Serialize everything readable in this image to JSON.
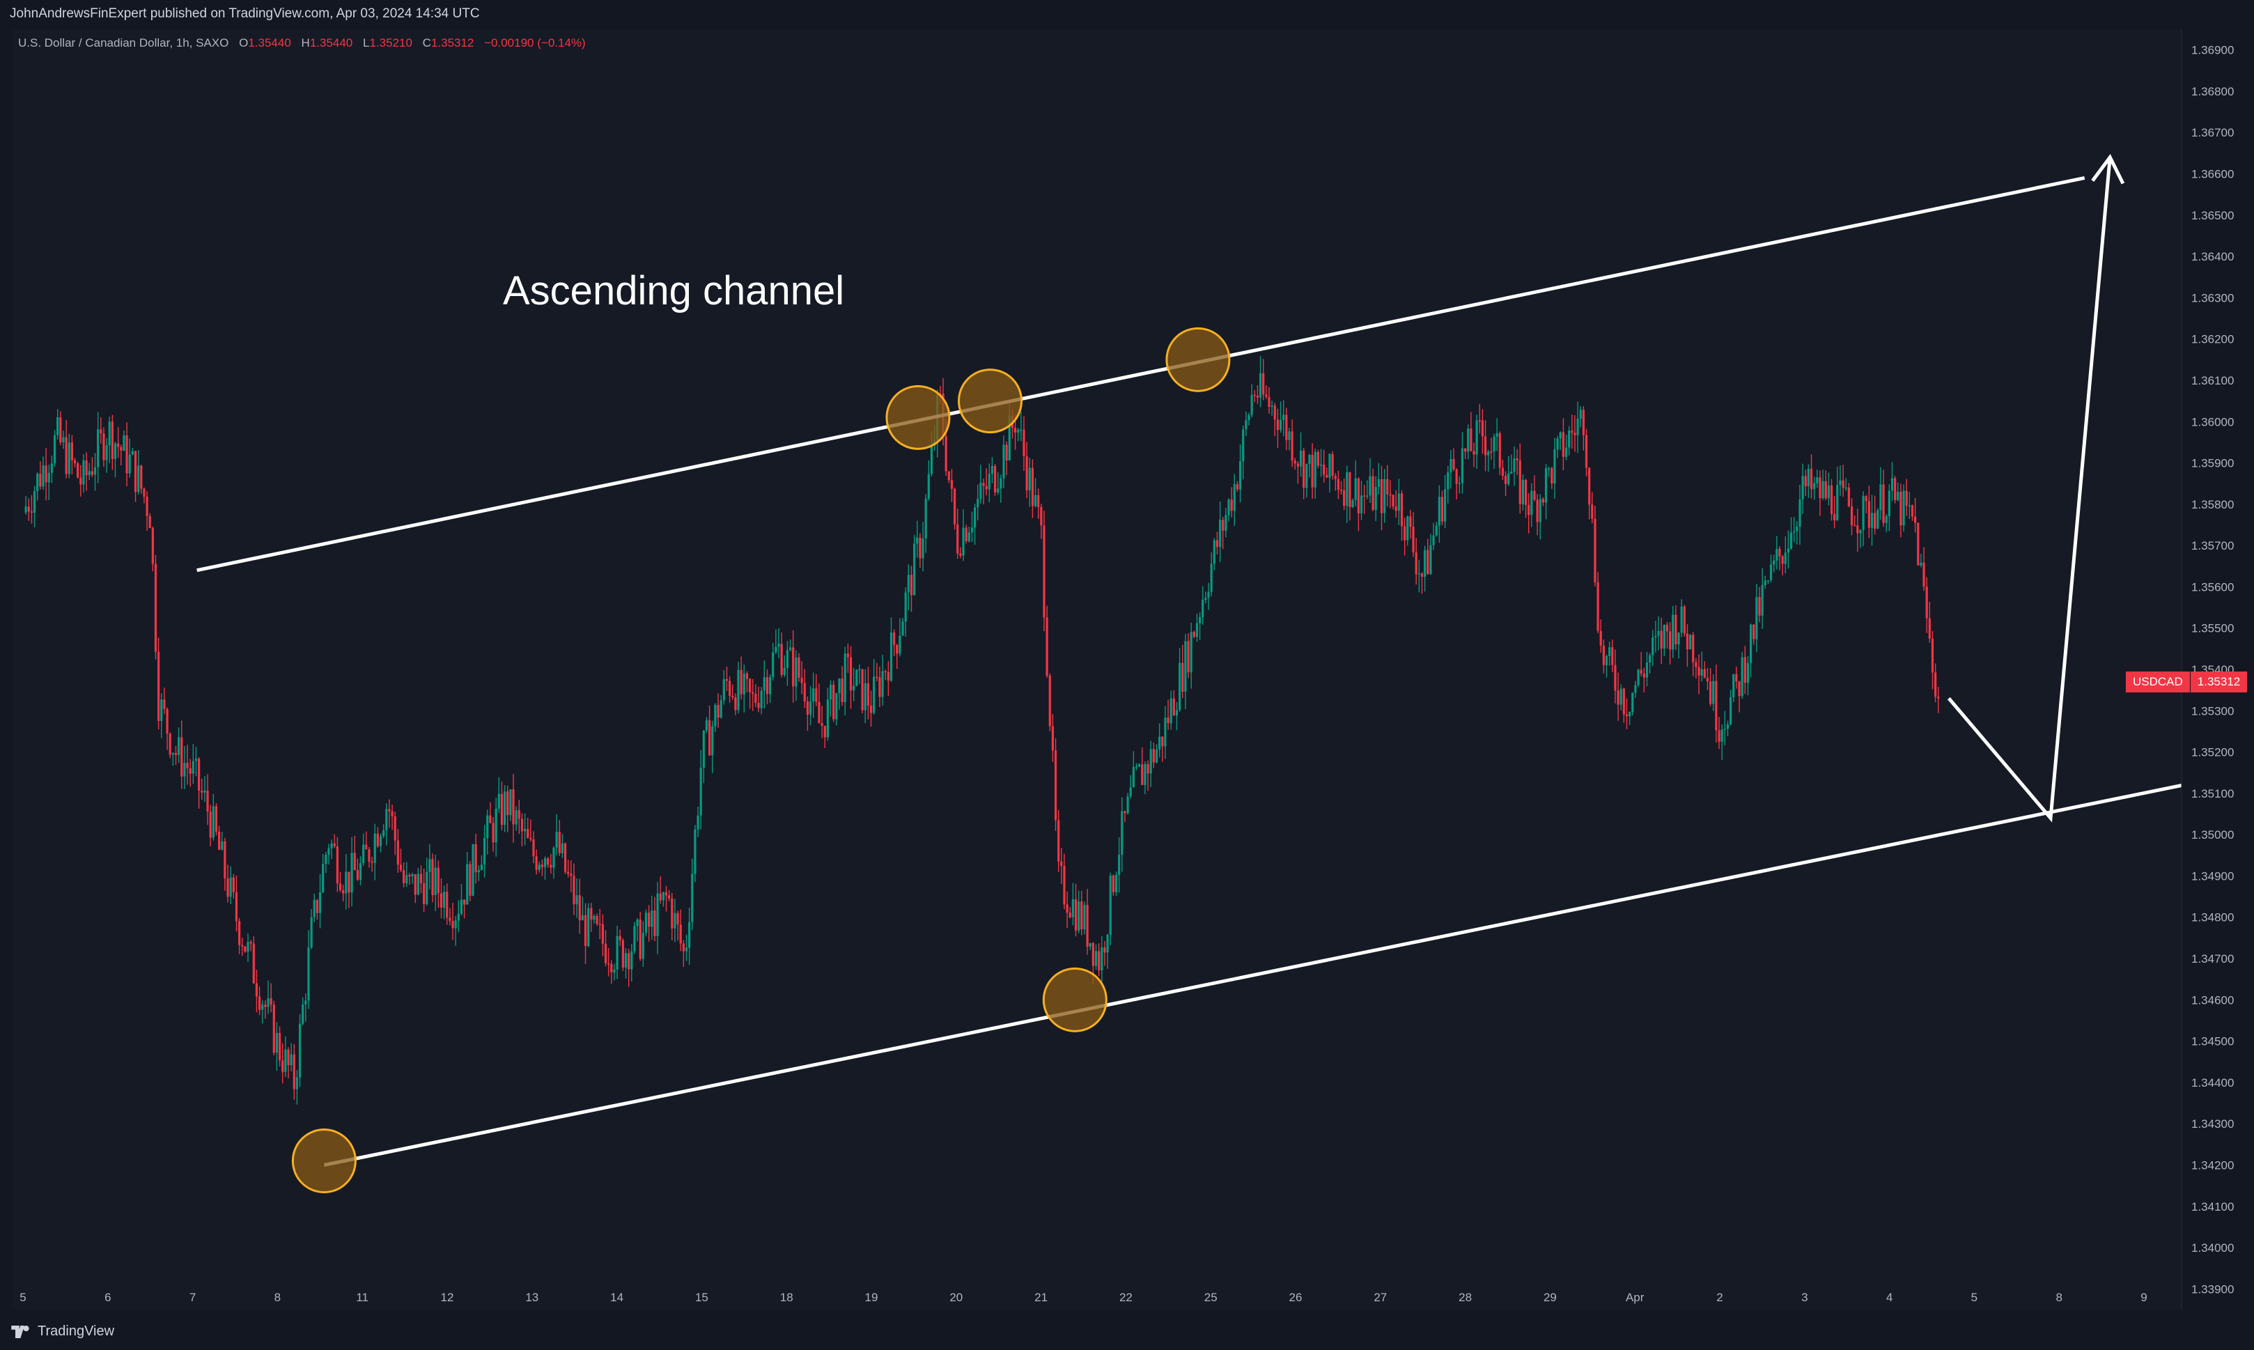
{
  "header": {
    "publisher_line": "JohnAndrewsFinExpert published on TradingView.com, Apr 03, 2024 14:34 UTC"
  },
  "legend": {
    "instrument": "U.S. Dollar / Canadian Dollar, 1h, SAXO",
    "o_label": "O",
    "o_value": "1.35440",
    "h_label": "H",
    "h_value": "1.35440",
    "l_label": "L",
    "l_value": "1.35210",
    "c_label": "C",
    "c_value": "1.35312",
    "change": "−0.00190 (−0.14%)"
  },
  "annotation": {
    "text": "Ascending channel"
  },
  "price_badge": {
    "symbol": "USDCAD",
    "value": "1.35312"
  },
  "footer": {
    "brand": "TradingView"
  },
  "colors": {
    "background": "#161a25",
    "up_candle": "#089981",
    "down_candle": "#f23645",
    "drawing": "#ffffff",
    "touch_marker_fill": "#8a5a14",
    "touch_marker_stroke": "#f5b021"
  },
  "chart_data": {
    "type": "candlestick",
    "symbol": "USDCAD",
    "timeframe": "1h",
    "ylim": [
      1.3385,
      1.3695
    ],
    "y_ticks": [
      "1.36900",
      "1.36800",
      "1.36700",
      "1.36600",
      "1.36500",
      "1.36400",
      "1.36300",
      "1.36200",
      "1.36100",
      "1.36000",
      "1.35900",
      "1.35800",
      "1.35700",
      "1.35600",
      "1.35500",
      "1.35400",
      "1.35300",
      "1.35200",
      "1.35100",
      "1.35000",
      "1.34900",
      "1.34800",
      "1.34700",
      "1.34600",
      "1.34500",
      "1.34400",
      "1.34300",
      "1.34200",
      "1.34100",
      "1.34000",
      "1.33900"
    ],
    "x_ticks": [
      "5",
      "6",
      "7",
      "8",
      "11",
      "12",
      "13",
      "14",
      "15",
      "18",
      "19",
      "20",
      "21",
      "22",
      "25",
      "26",
      "27",
      "28",
      "29",
      "Apr",
      "2",
      "3",
      "4",
      "5",
      "8",
      "9"
    ],
    "price_path": [
      [
        0.0,
        1.3578
      ],
      [
        0.4,
        1.3596
      ],
      [
        0.7,
        1.3585
      ],
      [
        1.0,
        1.3598
      ],
      [
        1.3,
        1.3589
      ],
      [
        1.5,
        1.3578
      ],
      [
        1.6,
        1.3532
      ],
      [
        1.8,
        1.352
      ],
      [
        2.0,
        1.3515
      ],
      [
        2.2,
        1.3505
      ],
      [
        2.5,
        1.3481
      ],
      [
        2.8,
        1.3462
      ],
      [
        3.0,
        1.3449
      ],
      [
        3.2,
        1.344
      ],
      [
        3.4,
        1.3476
      ],
      [
        3.6,
        1.3499
      ],
      [
        3.8,
        1.3489
      ],
      [
        4.0,
        1.3492
      ],
      [
        4.3,
        1.3508
      ],
      [
        4.5,
        1.3487
      ],
      [
        4.8,
        1.3489
      ],
      [
        5.1,
        1.3482
      ],
      [
        5.4,
        1.3497
      ],
      [
        5.7,
        1.3508
      ],
      [
        6.0,
        1.3495
      ],
      [
        6.3,
        1.3497
      ],
      [
        6.6,
        1.3478
      ],
      [
        7.0,
        1.3471
      ],
      [
        7.3,
        1.3475
      ],
      [
        7.6,
        1.3485
      ],
      [
        7.8,
        1.347
      ],
      [
        8.0,
        1.3519
      ],
      [
        8.3,
        1.3537
      ],
      [
        8.6,
        1.3532
      ],
      [
        8.9,
        1.3545
      ],
      [
        9.2,
        1.3537
      ],
      [
        9.4,
        1.3526
      ],
      [
        9.7,
        1.3539
      ],
      [
        10.0,
        1.3532
      ],
      [
        10.3,
        1.3548
      ],
      [
        10.6,
        1.3573
      ],
      [
        10.8,
        1.3606
      ],
      [
        11.0,
        1.3571
      ],
      [
        11.3,
        1.3582
      ],
      [
        11.5,
        1.3589
      ],
      [
        11.7,
        1.3601
      ],
      [
        12.0,
        1.3573
      ],
      [
        12.2,
        1.3489
      ],
      [
        12.5,
        1.3479
      ],
      [
        12.7,
        1.3469
      ],
      [
        12.9,
        1.3496
      ],
      [
        13.1,
        1.3512
      ],
      [
        13.4,
        1.3522
      ],
      [
        13.7,
        1.3542
      ],
      [
        14.0,
        1.3565
      ],
      [
        14.3,
        1.3586
      ],
      [
        14.5,
        1.3608
      ],
      [
        14.8,
        1.3602
      ],
      [
        15.1,
        1.3589
      ],
      [
        15.5,
        1.3586
      ],
      [
        15.8,
        1.3582
      ],
      [
        16.2,
        1.3582
      ],
      [
        16.5,
        1.3562
      ],
      [
        16.8,
        1.3587
      ],
      [
        17.2,
        1.3597
      ],
      [
        17.5,
        1.3589
      ],
      [
        17.8,
        1.3579
      ],
      [
        18.1,
        1.3592
      ],
      [
        18.4,
        1.3602
      ],
      [
        18.6,
        1.3544
      ],
      [
        18.9,
        1.3532
      ],
      [
        19.2,
        1.3544
      ],
      [
        19.5,
        1.3552
      ],
      [
        19.8,
        1.3542
      ],
      [
        20.0,
        1.3527
      ],
      [
        20.2,
        1.3535
      ],
      [
        20.5,
        1.3557
      ],
      [
        20.8,
        1.3572
      ],
      [
        21.0,
        1.3584
      ],
      [
        21.4,
        1.3581
      ],
      [
        21.7,
        1.3577
      ],
      [
        22.0,
        1.3582
      ],
      [
        22.3,
        1.3575
      ],
      [
        22.5,
        1.3542
      ],
      [
        22.6,
        1.3531
      ]
    ],
    "channel": {
      "upper": {
        "from": [
          2.05,
          1.3564
        ],
        "to": [
          24.3,
          1.3659
        ]
      },
      "lower": {
        "from": [
          3.55,
          1.342
        ],
        "to": [
          25.7,
          1.3513
        ]
      }
    },
    "projection": {
      "from": [
        22.7,
        1.3533
      ],
      "via": [
        23.9,
        1.3504
      ],
      "to": [
        24.6,
        1.3664
      ]
    },
    "touch_points": [
      [
        3.55,
        1.3421
      ],
      [
        10.55,
        1.3601
      ],
      [
        11.4,
        1.3605
      ],
      [
        12.4,
        1.346
      ],
      [
        13.85,
        1.3615
      ]
    ]
  }
}
